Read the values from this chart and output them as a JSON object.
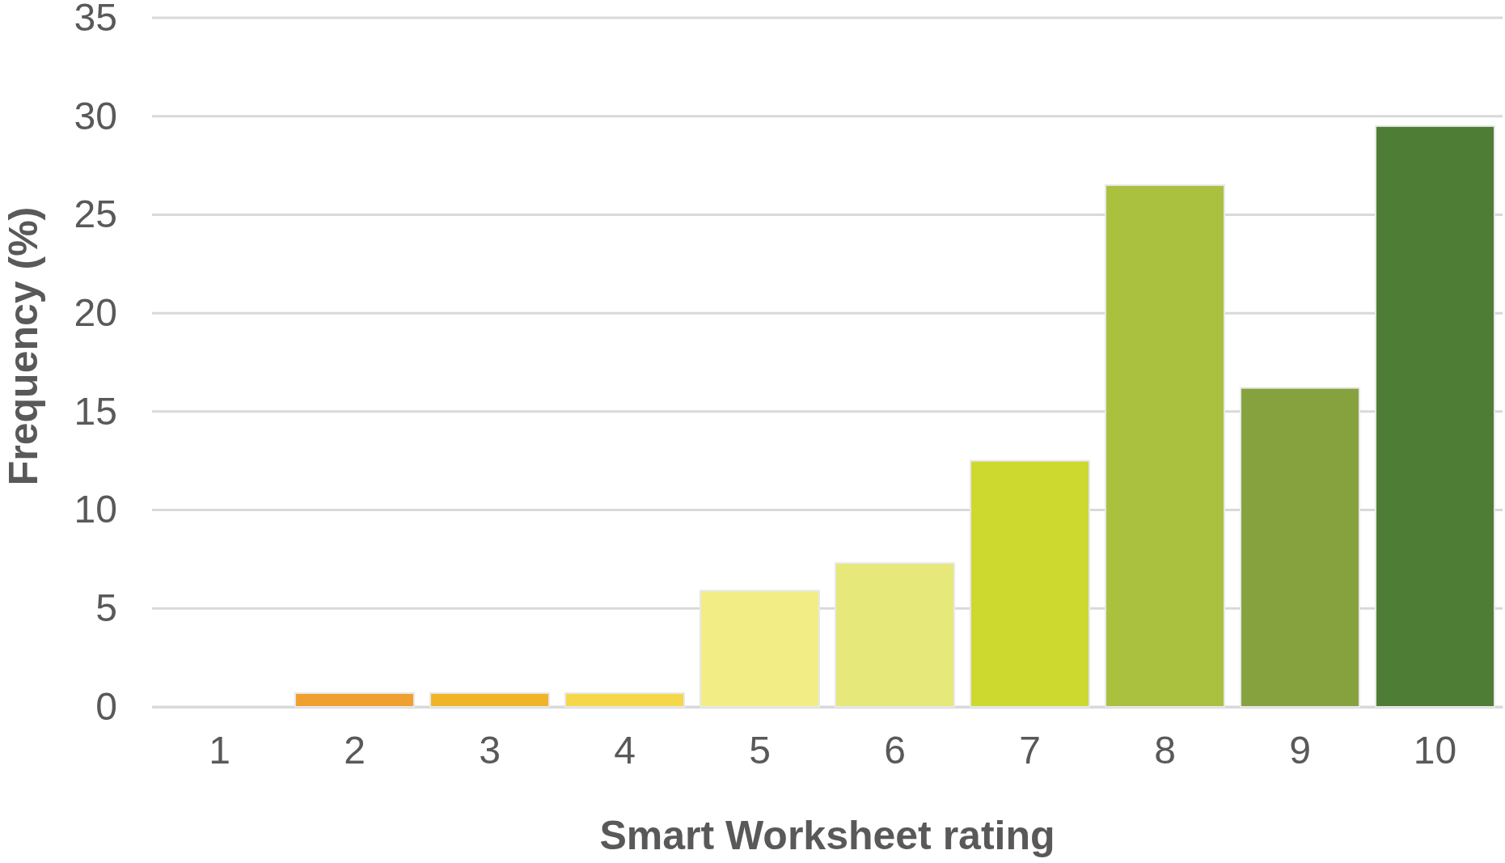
{
  "chart_data": {
    "type": "bar",
    "xlabel": "Smart Worksheet rating",
    "ylabel": "Frequency (%)",
    "categories": [
      "1",
      "2",
      "3",
      "4",
      "5",
      "6",
      "7",
      "8",
      "9",
      "10"
    ],
    "values": [
      0,
      0.7,
      0.7,
      0.7,
      5.9,
      7.3,
      12.5,
      26.5,
      16.2,
      29.5
    ],
    "colors": [
      "#f0a030",
      "#f0a030",
      "#f0b428",
      "#f5d84a",
      "#f2ee85",
      "#e6e87a",
      "#cdd92e",
      "#a9c13e",
      "#86a23f",
      "#4e7e35"
    ],
    "ylim": [
      0,
      35
    ],
    "yticks": [
      0,
      5,
      10,
      15,
      20,
      25,
      30,
      35
    ],
    "grid": "y"
  }
}
